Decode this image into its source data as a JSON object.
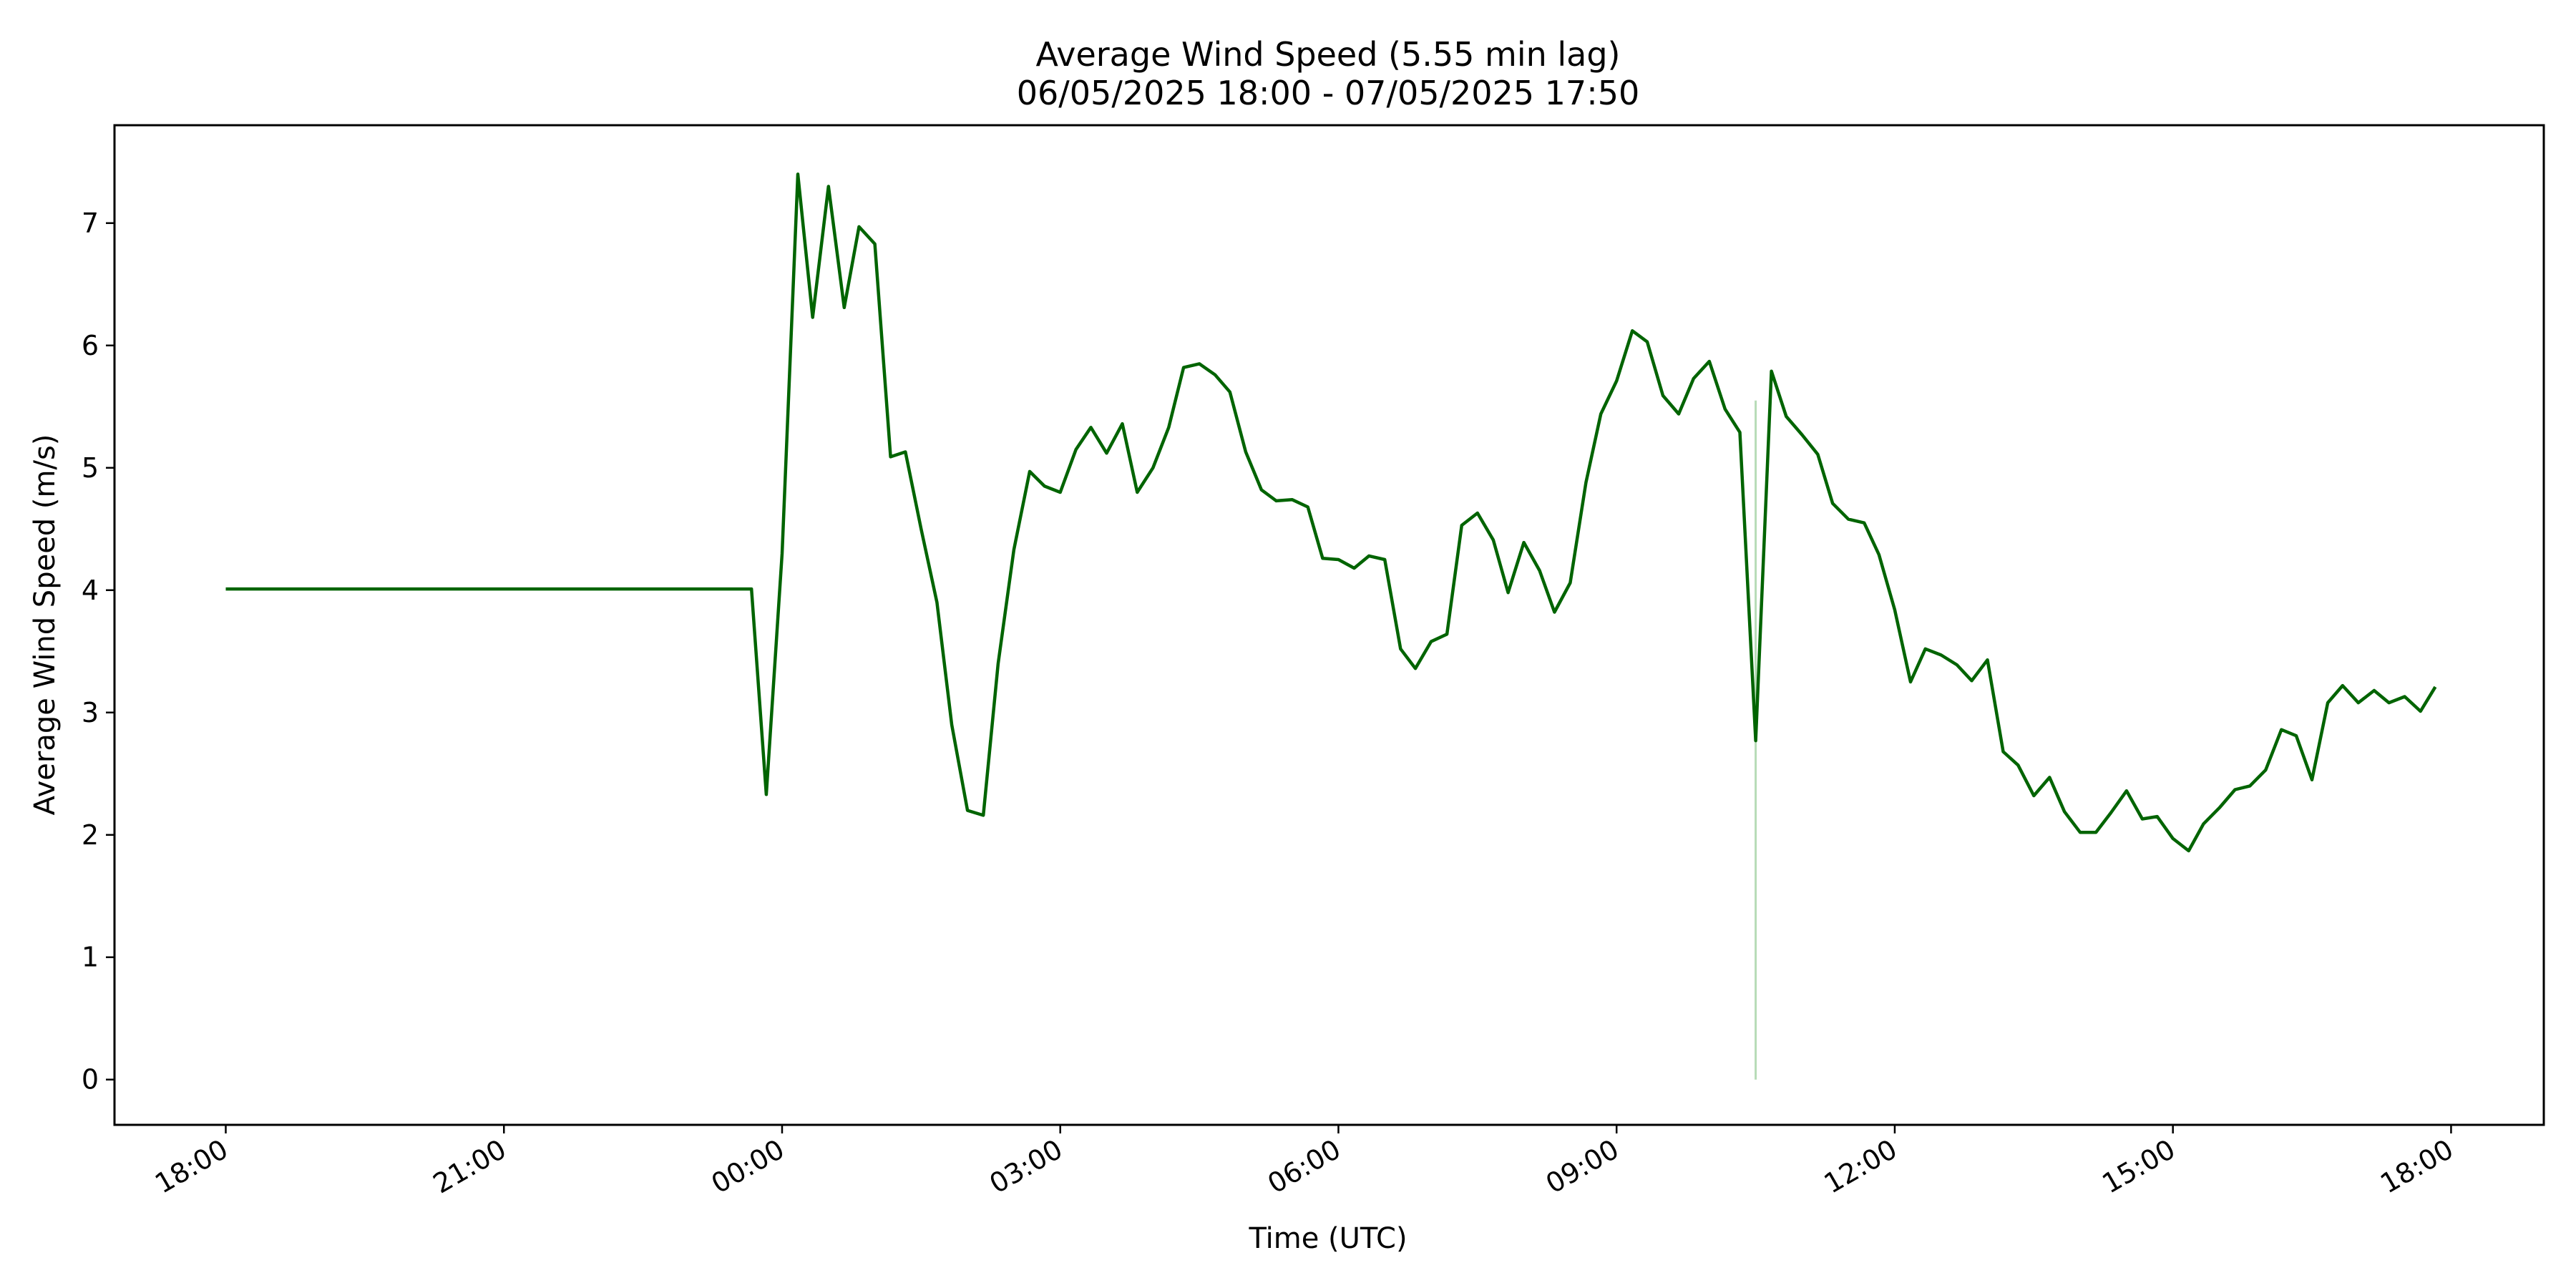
{
  "chart_data": {
    "type": "line",
    "title": "Average Wind Speed (5.55 min lag)",
    "subtitle": "06/05/2025 18:00 - 07/05/2025 17:50",
    "xlabel": "Time (UTC)",
    "ylabel": "Average Wind Speed (m/s)",
    "x_unit": "hour offset from 18:00",
    "xlim": [
      -1.2,
      25
    ],
    "ylim": [
      -0.37,
      7.8
    ],
    "grid": false,
    "colors": {
      "line": "#006400",
      "marker_line": "#b7dcb7"
    },
    "x_ticks": [
      {
        "x": 0,
        "label": "18:00"
      },
      {
        "x": 3,
        "label": "21:00"
      },
      {
        "x": 6,
        "label": "00:00"
      },
      {
        "x": 9,
        "label": "03:00"
      },
      {
        "x": 12,
        "label": "06:00"
      },
      {
        "x": 15,
        "label": "09:00"
      },
      {
        "x": 18,
        "label": "12:00"
      },
      {
        "x": 21,
        "label": "15:00"
      },
      {
        "x": 24,
        "label": "18:00"
      }
    ],
    "y_ticks": [
      {
        "y": 0,
        "label": "0"
      },
      {
        "y": 1,
        "label": "1"
      },
      {
        "y": 2,
        "label": "2"
      },
      {
        "y": 3,
        "label": "3"
      },
      {
        "y": 4,
        "label": "4"
      },
      {
        "y": 5,
        "label": "5"
      },
      {
        "y": 6,
        "label": "6"
      },
      {
        "y": 7,
        "label": "7"
      }
    ],
    "vertical_line": {
      "x": 16.5,
      "y_from": 0,
      "y_to": 5.55
    },
    "series": [
      {
        "values": [
          [
            0.0,
            4.01
          ],
          [
            5.67,
            4.01
          ],
          [
            5.83,
            2.33
          ],
          [
            6.0,
            4.3
          ],
          [
            6.17,
            7.4
          ],
          [
            6.33,
            6.23
          ],
          [
            6.5,
            7.3
          ],
          [
            6.67,
            6.31
          ],
          [
            6.83,
            6.97
          ],
          [
            7.0,
            6.83
          ],
          [
            7.17,
            5.09
          ],
          [
            7.33,
            5.13
          ],
          [
            7.5,
            4.5
          ],
          [
            7.67,
            3.9
          ],
          [
            7.83,
            2.9
          ],
          [
            8.0,
            2.2
          ],
          [
            8.17,
            2.16
          ],
          [
            8.33,
            3.4
          ],
          [
            8.5,
            4.33
          ],
          [
            8.67,
            4.97
          ],
          [
            8.83,
            4.85
          ],
          [
            9.0,
            4.8
          ],
          [
            9.17,
            5.15
          ],
          [
            9.33,
            5.33
          ],
          [
            9.5,
            5.12
          ],
          [
            9.67,
            5.36
          ],
          [
            9.83,
            4.8
          ],
          [
            10.0,
            5.0
          ],
          [
            10.17,
            5.33
          ],
          [
            10.33,
            5.82
          ],
          [
            10.5,
            5.85
          ],
          [
            10.67,
            5.76
          ],
          [
            10.83,
            5.62
          ],
          [
            11.0,
            5.13
          ],
          [
            11.17,
            4.82
          ],
          [
            11.33,
            4.73
          ],
          [
            11.5,
            4.74
          ],
          [
            11.67,
            4.68
          ],
          [
            11.83,
            4.26
          ],
          [
            12.0,
            4.25
          ],
          [
            12.17,
            4.18
          ],
          [
            12.33,
            4.28
          ],
          [
            12.5,
            4.25
          ],
          [
            12.67,
            3.52
          ],
          [
            12.83,
            3.36
          ],
          [
            13.0,
            3.58
          ],
          [
            13.17,
            3.64
          ],
          [
            13.33,
            4.53
          ],
          [
            13.5,
            4.63
          ],
          [
            13.67,
            4.41
          ],
          [
            13.83,
            3.98
          ],
          [
            14.0,
            4.39
          ],
          [
            14.17,
            4.16
          ],
          [
            14.33,
            3.82
          ],
          [
            14.5,
            4.06
          ],
          [
            14.67,
            4.88
          ],
          [
            14.83,
            5.44
          ],
          [
            15.0,
            5.71
          ],
          [
            15.17,
            6.12
          ],
          [
            15.33,
            6.03
          ],
          [
            15.5,
            5.59
          ],
          [
            15.67,
            5.44
          ],
          [
            15.83,
            5.73
          ],
          [
            16.0,
            5.87
          ],
          [
            16.17,
            5.48
          ],
          [
            16.33,
            5.29
          ],
          [
            16.5,
            2.77
          ],
          [
            16.67,
            5.79
          ],
          [
            16.83,
            5.42
          ],
          [
            17.0,
            5.27
          ],
          [
            17.17,
            5.11
          ],
          [
            17.33,
            4.71
          ],
          [
            17.5,
            4.58
          ],
          [
            17.67,
            4.55
          ],
          [
            17.83,
            4.29
          ],
          [
            18.0,
            3.84
          ],
          [
            18.17,
            3.25
          ],
          [
            18.33,
            3.52
          ],
          [
            18.5,
            3.47
          ],
          [
            18.67,
            3.39
          ],
          [
            18.83,
            3.26
          ],
          [
            19.0,
            3.43
          ],
          [
            19.17,
            2.68
          ],
          [
            19.33,
            2.57
          ],
          [
            19.5,
            2.32
          ],
          [
            19.67,
            2.47
          ],
          [
            19.83,
            2.19
          ],
          [
            20.0,
            2.02
          ],
          [
            20.17,
            2.02
          ],
          [
            20.33,
            2.18
          ],
          [
            20.5,
            2.36
          ],
          [
            20.67,
            2.13
          ],
          [
            20.83,
            2.15
          ],
          [
            21.0,
            1.97
          ],
          [
            21.17,
            1.87
          ],
          [
            21.33,
            2.09
          ],
          [
            21.5,
            2.22
          ],
          [
            21.67,
            2.37
          ],
          [
            21.83,
            2.4
          ],
          [
            22.0,
            2.53
          ],
          [
            22.17,
            2.86
          ],
          [
            22.33,
            2.81
          ],
          [
            22.5,
            2.45
          ],
          [
            22.67,
            3.08
          ],
          [
            22.83,
            3.22
          ],
          [
            23.0,
            3.08
          ],
          [
            23.17,
            3.18
          ],
          [
            23.33,
            3.08
          ],
          [
            23.5,
            3.13
          ],
          [
            23.67,
            3.01
          ],
          [
            23.83,
            3.21
          ]
        ]
      }
    ]
  }
}
